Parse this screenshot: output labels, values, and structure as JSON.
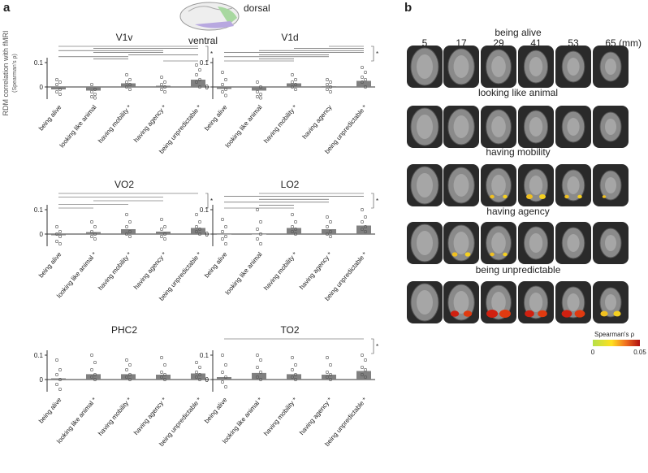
{
  "figure": {
    "panel_a": "a",
    "panel_b": "b",
    "ylabel": "RDM correlation with fMRI",
    "ylabel_sub": "(Spearman's ρ)",
    "inset_dorsal": "dorsal",
    "inset_ventral": "ventral",
    "significance": "*"
  },
  "chart_data": [
    {
      "type": "bar",
      "title": "V1v",
      "categories": [
        "being alive",
        "looking like animal",
        "having mobility *",
        "having agency *",
        "being unpredictable *"
      ],
      "values": [
        -0.01,
        -0.015,
        0.015,
        0.005,
        0.03
      ],
      "color": "#808080",
      "ylim": [
        -0.05,
        0.12
      ],
      "yticks": [
        0,
        0.1
      ],
      "points": [
        [
          0.03,
          0.02,
          0.01,
          -0.01,
          -0.02,
          -0.03
        ],
        [
          0.01,
          -0.01,
          -0.02,
          -0.03,
          -0.04,
          -0.045
        ],
        [
          0.05,
          0.03,
          0.02,
          0.01,
          0.0,
          -0.01
        ],
        [
          0.04,
          0.02,
          0.01,
          0.0,
          -0.01,
          -0.02
        ],
        [
          0.09,
          0.07,
          0.05,
          0.03,
          0.02,
          0.0
        ]
      ],
      "comparisons": [
        [
          0,
          4
        ],
        [
          1,
          4
        ],
        [
          0,
          3
        ],
        [
          1,
          3
        ],
        [
          2,
          4
        ],
        [
          0,
          2
        ],
        [
          1,
          2
        ],
        [
          3,
          4
        ]
      ]
    },
    {
      "type": "bar",
      "title": "V1d",
      "categories": [
        "being alive",
        "looking like animal",
        "having mobility *",
        "having agency",
        "being unpredictable *"
      ],
      "values": [
        -0.008,
        -0.015,
        0.015,
        0.003,
        0.025
      ],
      "color": "#808080",
      "ylim": [
        -0.05,
        0.12
      ],
      "yticks": [
        0,
        0.1
      ],
      "points": [
        [
          0.06,
          0.03,
          0.01,
          -0.01,
          -0.02,
          -0.035
        ],
        [
          0.02,
          0.0,
          -0.02,
          -0.03,
          -0.04,
          -0.045
        ],
        [
          0.05,
          0.03,
          0.02,
          0.01,
          0.0,
          -0.01
        ],
        [
          0.03,
          0.02,
          0.01,
          0.0,
          -0.01,
          -0.02
        ],
        [
          0.08,
          0.06,
          0.04,
          0.03,
          0.02,
          0.0
        ]
      ],
      "comparisons": [
        [
          3,
          4
        ],
        [
          2,
          4
        ],
        [
          1,
          4
        ],
        [
          0,
          4
        ],
        [
          1,
          3
        ],
        [
          0,
          3
        ],
        [
          1,
          2
        ],
        [
          0,
          2
        ]
      ]
    },
    {
      "type": "bar",
      "title": "VO2",
      "categories": [
        "being alive",
        "looking like animal *",
        "having mobility *",
        "having agency *",
        "being unpredictable *"
      ],
      "values": [
        -0.005,
        0.008,
        0.02,
        0.01,
        0.025
      ],
      "color": "#808080",
      "ylim": [
        -0.05,
        0.12
      ],
      "yticks": [
        0,
        0.1
      ],
      "points": [
        [
          0.03,
          0.01,
          0.0,
          -0.01,
          -0.03,
          -0.04
        ],
        [
          0.05,
          0.03,
          0.01,
          0.0,
          -0.01,
          -0.02
        ],
        [
          0.08,
          0.05,
          0.03,
          0.01,
          0.0,
          -0.01
        ],
        [
          0.06,
          0.03,
          0.02,
          0.0,
          -0.01,
          -0.02
        ],
        [
          0.08,
          0.05,
          0.03,
          0.02,
          0.01,
          0.0
        ]
      ],
      "comparisons": [
        [
          0,
          4
        ],
        [
          0,
          3
        ],
        [
          1,
          3
        ],
        [
          0,
          2
        ],
        [
          0,
          1
        ]
      ]
    },
    {
      "type": "bar",
      "title": "LO2",
      "categories": [
        "being alive",
        "looking like animal",
        "having mobility *",
        "having agency *",
        "being unpredictable *"
      ],
      "values": [
        -0.002,
        0.0,
        0.025,
        0.02,
        0.035
      ],
      "color": "#808080",
      "ylim": [
        -0.05,
        0.12
      ],
      "yticks": [
        0,
        0.1
      ],
      "points": [
        [
          0.06,
          0.03,
          0.01,
          -0.01,
          -0.02,
          -0.04
        ],
        [
          0.1,
          0.05,
          0.02,
          0.0,
          -0.02,
          -0.04
        ],
        [
          0.08,
          0.05,
          0.03,
          0.02,
          0.01,
          0.0
        ],
        [
          0.07,
          0.05,
          0.03,
          0.01,
          0.0,
          -0.01
        ],
        [
          0.1,
          0.07,
          0.05,
          0.03,
          0.02,
          0.01
        ]
      ],
      "comparisons": [
        [
          1,
          4
        ],
        [
          0,
          4
        ],
        [
          1,
          3
        ],
        [
          0,
          3
        ],
        [
          1,
          2
        ],
        [
          0,
          2
        ]
      ]
    },
    {
      "type": "bar",
      "title": "PHC2",
      "categories": [
        "being alive",
        "looking like animal *",
        "having mobility *",
        "having agency *",
        "being unpredictable *"
      ],
      "values": [
        0.005,
        0.022,
        0.022,
        0.02,
        0.025
      ],
      "color": "#808080",
      "ylim": [
        -0.05,
        0.12
      ],
      "yticks": [
        0,
        0.1
      ],
      "points": [
        [
          0.08,
          0.04,
          0.02,
          0.0,
          -0.02,
          -0.04
        ],
        [
          0.1,
          0.07,
          0.04,
          0.02,
          0.01,
          0.0
        ],
        [
          0.08,
          0.06,
          0.04,
          0.02,
          0.01,
          0.0
        ],
        [
          0.09,
          0.06,
          0.03,
          0.02,
          0.01,
          0.0
        ],
        [
          0.07,
          0.05,
          0.03,
          0.02,
          0.01,
          0.0
        ]
      ],
      "comparisons": []
    },
    {
      "type": "bar",
      "title": "TO2",
      "categories": [
        "being alive",
        "looking like animal *",
        "having mobility *",
        "having agency *",
        "being unpredictable *"
      ],
      "values": [
        0.01,
        0.027,
        0.022,
        0.02,
        0.035
      ],
      "color": "#808080",
      "ylim": [
        -0.05,
        0.12
      ],
      "yticks": [
        0,
        0.1
      ],
      "points": [
        [
          0.1,
          0.06,
          0.03,
          0.01,
          -0.01,
          -0.03
        ],
        [
          0.1,
          0.08,
          0.05,
          0.03,
          0.01,
          0.0
        ],
        [
          0.09,
          0.06,
          0.04,
          0.02,
          0.01,
          0.0
        ],
        [
          0.09,
          0.06,
          0.03,
          0.02,
          0.01,
          0.0
        ],
        [
          0.1,
          0.08,
          0.05,
          0.04,
          0.02,
          0.01
        ]
      ],
      "comparisons": [
        [
          0,
          4
        ]
      ]
    }
  ],
  "brain_panel": {
    "slices": [
      5,
      17,
      29,
      41,
      53,
      65
    ],
    "unit": "(mm)",
    "rows": [
      "being alive",
      "looking like animal",
      "having mobility",
      "having agency",
      "being unpredictable"
    ],
    "colorbar_title": "Spearman's ρ",
    "colorbar_min": "0",
    "colorbar_max": "0.05"
  }
}
